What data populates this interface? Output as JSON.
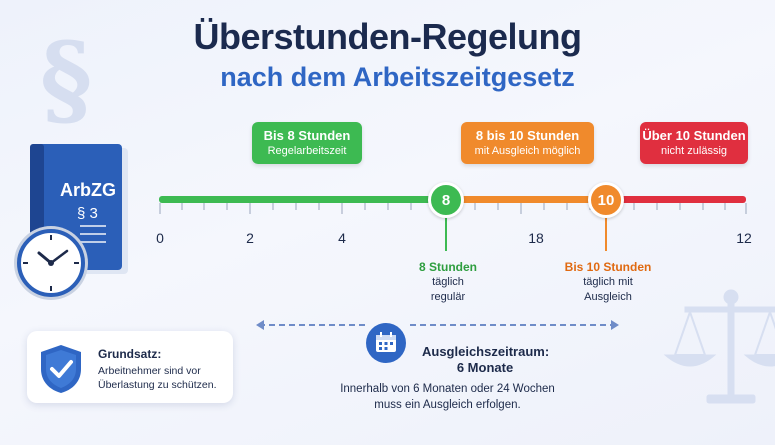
{
  "title": {
    "main": "Überstunden-Regelung",
    "sub": "nach dem Arbeitszeitgesetz"
  },
  "zones": {
    "green": {
      "line1": "Bis 8 Stunden",
      "line2": "Regelarbeitszeit",
      "color": "#3dba52"
    },
    "orange": {
      "line1": "8 bis 10 Stunden",
      "line2": "mit Ausgleich möglich",
      "color": "#f08a2c"
    },
    "red": {
      "line1": "Über 10 Stunden",
      "line2": "nicht zulässig",
      "color": "#e02f3f"
    }
  },
  "timeline": {
    "labels": [
      "0",
      "2",
      "4",
      "18",
      "12"
    ],
    "marker_8": "8",
    "marker_10": "10"
  },
  "notes": {
    "eight": {
      "head": "8 Stunden",
      "line1": "täglich",
      "line2": "regulär"
    },
    "ten": {
      "head": "Bis 10 Stunden",
      "line1": "täglich mit",
      "line2": "Ausgleich"
    }
  },
  "book": {
    "title": "ArbZG",
    "section": "§ 3"
  },
  "principle": {
    "head": "Grundsatz:",
    "text": "Arbeitnehmer sind vor Überlastung zu schützen."
  },
  "period": {
    "head": "Ausgleichszeitraum:",
    "value": "6 Monate",
    "text": "Innerhalb von 6 Monaten oder 24 Wochen muss ein Ausgleich erfolgen."
  },
  "icons": {
    "paragraph": "paragraph-symbol-icon",
    "book": "law-book-icon",
    "clock": "clock-icon",
    "shield": "shield-check-icon",
    "calendar": "calendar-icon",
    "scale": "justice-scale-icon"
  }
}
